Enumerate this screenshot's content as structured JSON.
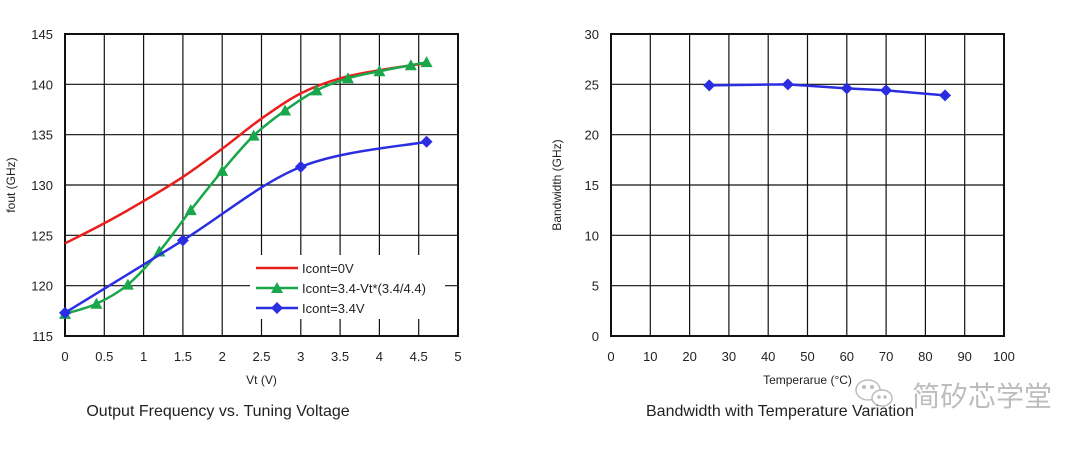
{
  "chart_data": [
    {
      "type": "line",
      "title": "Output Frequency vs. Tuning Voltage",
      "xlabel": "Vt (V)",
      "ylabel": "fout (GHz)",
      "xlim": [
        0,
        5
      ],
      "ylim": [
        115,
        145
      ],
      "xticks": [
        "0",
        "0.5",
        "1",
        "1.5",
        "2",
        "2.5",
        "3",
        "3.5",
        "4",
        "4.5",
        "5"
      ],
      "yticks": [
        "115",
        "120",
        "125",
        "130",
        "135",
        "140",
        "145"
      ],
      "grid": true,
      "legend_position": "bottom-right",
      "series": [
        {
          "name": "Icont=0V",
          "color": "#e8201c",
          "marker": "none",
          "x": [
            0,
            0.5,
            1,
            1.5,
            2,
            2.5,
            3,
            3.5,
            4,
            4.6
          ],
          "y": [
            124.2,
            126.2,
            128.4,
            130.8,
            133.6,
            136.6,
            139.1,
            140.6,
            141.4,
            142.1
          ]
        },
        {
          "name": "Icont=3.4-Vt*(3.4/4.4)",
          "color": "#1aa64a",
          "marker": "triangle",
          "x": [
            0,
            0.4,
            0.8,
            1.2,
            1.6,
            2,
            2.4,
            2.8,
            3.2,
            3.6,
            4,
            4.4,
            4.6
          ],
          "y": [
            117.2,
            118.2,
            120.1,
            123.4,
            127.5,
            131.4,
            134.9,
            137.4,
            139.4,
            140.6,
            141.3,
            141.9,
            142.2
          ]
        },
        {
          "name": "Icont=3.4V",
          "color": "#2a2ee0",
          "marker": "diamond",
          "x": [
            0,
            1.5,
            3,
            4.6
          ],
          "y": [
            117.3,
            124.5,
            131.8,
            134.3
          ]
        }
      ]
    },
    {
      "type": "line",
      "title": "Bandwidth with Temperature Variation",
      "xlabel": "Temperarue (°C)",
      "ylabel": "Bandwidth (GHz)",
      "xlim": [
        0,
        100
      ],
      "ylim": [
        0,
        30
      ],
      "xticks": [
        "0",
        "10",
        "20",
        "30",
        "40",
        "50",
        "60",
        "70",
        "80",
        "90",
        "100"
      ],
      "yticks": [
        "0",
        "5",
        "10",
        "15",
        "20",
        "25",
        "30"
      ],
      "grid": true,
      "series": [
        {
          "name": "Bandwidth",
          "color": "#2a2ee0",
          "marker": "diamond",
          "x": [
            25,
            45,
            60,
            70,
            85
          ],
          "y": [
            24.9,
            25.0,
            24.6,
            24.4,
            23.9
          ]
        }
      ]
    }
  ],
  "watermark": {
    "text": "简矽芯学堂",
    "icon": "wechat-icon"
  }
}
